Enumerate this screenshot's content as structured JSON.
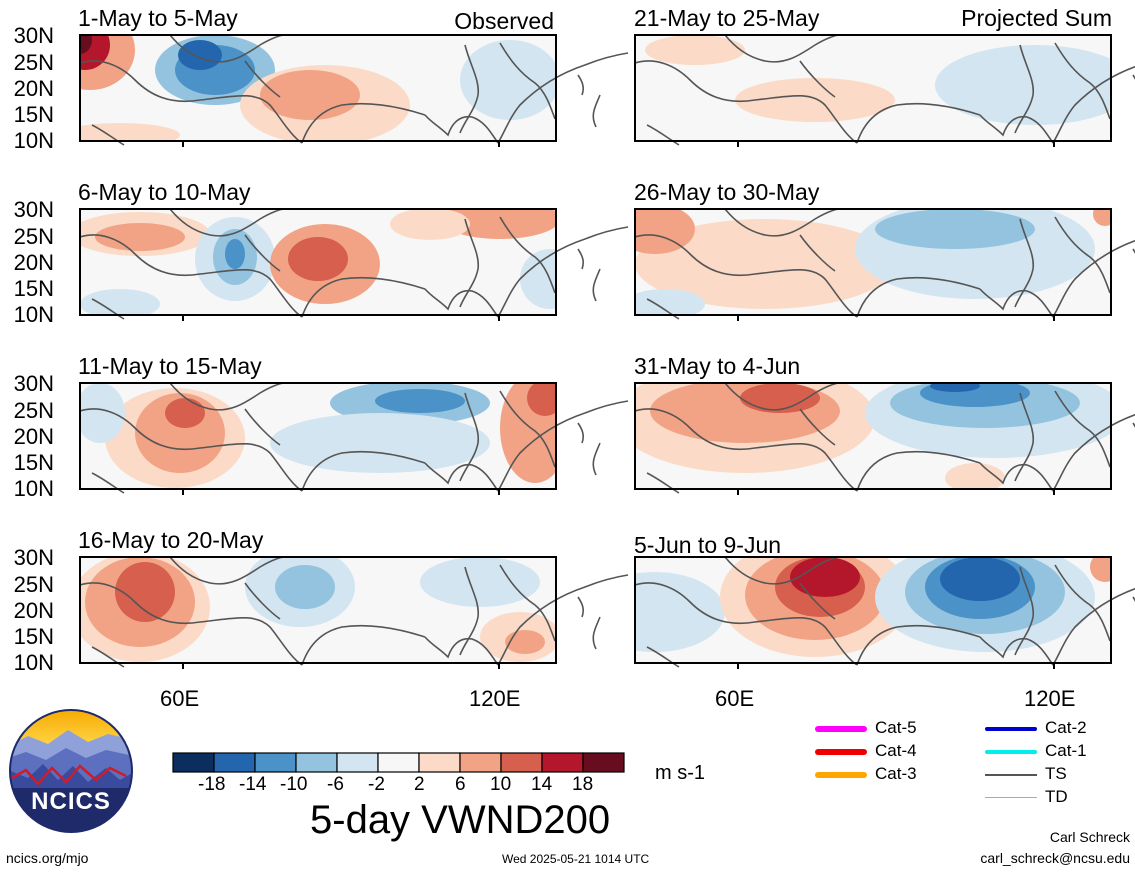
{
  "panels": [
    {
      "title": "1-May to 5-May",
      "tag": "Observed"
    },
    {
      "title": "6-May to 10-May",
      "tag": ""
    },
    {
      "title": "11-May to 15-May",
      "tag": ""
    },
    {
      "title": "16-May to 20-May",
      "tag": ""
    },
    {
      "title": "21-May to 25-May",
      "tag": "Projected Sum"
    },
    {
      "title": "26-May to 30-May",
      "tag": ""
    },
    {
      "title": "31-May to 4-Jun",
      "tag": ""
    },
    {
      "title": "5-Jun to 9-Jun",
      "tag": ""
    }
  ],
  "lat_labels": [
    "30N",
    "25N",
    "20N",
    "15N",
    "10N"
  ],
  "lon_labels": [
    "60E",
    "120E"
  ],
  "colorbar": {
    "colors": [
      "#0b2e5e",
      "#2466ad",
      "#4a92c7",
      "#93c3de",
      "#d2e5f0",
      "#f7f7f7",
      "#fbdbc7",
      "#f2a385",
      "#d6604d",
      "#b4172c",
      "#680d20"
    ],
    "ticks": [
      "-18",
      "-14",
      "-10",
      "-6",
      "-2",
      "2",
      "6",
      "10",
      "14",
      "18"
    ],
    "units": "m s-1",
    "title": "5-day VWND200"
  },
  "track_legend": [
    {
      "label": "Cat-5",
      "color": "#ff00ff"
    },
    {
      "label": "Cat-4",
      "color": "#ee0000"
    },
    {
      "label": "Cat-3",
      "color": "#ffa500"
    },
    {
      "label": "Cat-2",
      "color": "#0000cc"
    },
    {
      "label": "Cat-1",
      "color": "#00eeee"
    },
    {
      "label": "TS",
      "color": "#555555"
    },
    {
      "label": "TD",
      "color": "#aaaaaa"
    }
  ],
  "logo": {
    "text": "NCICS"
  },
  "footer": {
    "url": "ncics.org/mjo",
    "timestamp": "Wed 2025-05-21 1014 UTC",
    "author": "Carl Schreck",
    "email": "carl_schreck@ncsu.edu"
  }
}
